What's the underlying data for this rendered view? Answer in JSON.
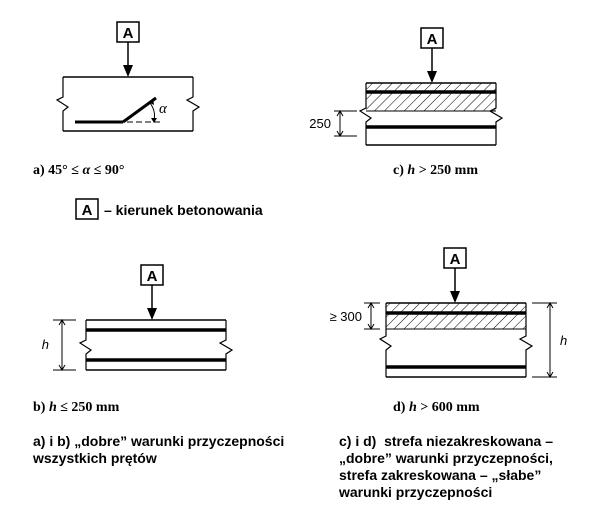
{
  "marker_letter": "A",
  "legend": {
    "text": "– kierunek betonowania"
  },
  "panels": {
    "a": {
      "caption_prefix": "a) 45° ≤ ",
      "caption_alpha": "α",
      "caption_suffix": " ≤ 90°",
      "angle_symbol": "α"
    },
    "b": {
      "caption_prefix": "b) ",
      "caption_h": "h",
      "caption_suffix": " ≤ 250 mm",
      "dim_label": "h"
    },
    "c": {
      "caption_prefix": "c) ",
      "caption_h": "h",
      "caption_suffix": " > 250 mm",
      "dim_label": "250"
    },
    "d": {
      "caption_prefix": "d) ",
      "caption_h": "h",
      "caption_suffix": " > 600 mm",
      "dim_label_top": "≥ 300",
      "dim_label_h": "h"
    }
  },
  "notes": {
    "left": [
      "a) i b) „dobre” warunki przyczepności",
      "wszystkich prętów"
    ],
    "right": [
      "c) i d)  strefa niezakreskowana –",
      "„dobre” warunki przyczepności,",
      "strefa zakreskowana – „słabe”",
      "warunki przyczepności"
    ]
  }
}
